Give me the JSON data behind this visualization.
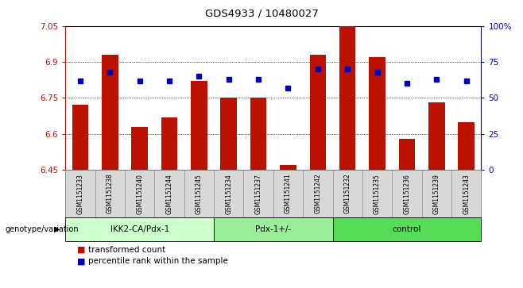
{
  "title": "GDS4933 / 10480027",
  "samples": [
    "GSM1151233",
    "GSM1151238",
    "GSM1151240",
    "GSM1151244",
    "GSM1151245",
    "GSM1151234",
    "GSM1151237",
    "GSM1151241",
    "GSM1151242",
    "GSM1151232",
    "GSM1151235",
    "GSM1151236",
    "GSM1151239",
    "GSM1151243"
  ],
  "bar_values": [
    6.72,
    6.93,
    6.63,
    6.67,
    6.82,
    6.75,
    6.75,
    6.47,
    6.93,
    7.05,
    6.92,
    6.58,
    6.73,
    6.65
  ],
  "percentile_values": [
    62,
    68,
    62,
    62,
    65,
    63,
    63,
    57,
    70,
    70,
    68,
    60,
    63,
    62
  ],
  "groups": [
    {
      "label": "IKK2-CA/Pdx-1",
      "start": 0,
      "end": 5,
      "color": "#ccffcc"
    },
    {
      "label": "Pdx-1+/-",
      "start": 5,
      "end": 9,
      "color": "#99ee99"
    },
    {
      "label": "control",
      "start": 9,
      "end": 14,
      "color": "#55dd55"
    }
  ],
  "ylim_left": [
    6.45,
    7.05
  ],
  "ylim_right": [
    0,
    100
  ],
  "yticks_left": [
    6.45,
    6.6,
    6.75,
    6.9,
    7.05
  ],
  "ytick_labels_left": [
    "6.45",
    "6.6",
    "6.75",
    "6.9",
    "7.05"
  ],
  "yticks_right": [
    0,
    25,
    50,
    75,
    100
  ],
  "ytick_labels_right": [
    "0",
    "25",
    "50",
    "75",
    "100%"
  ],
  "bar_color": "#bb1100",
  "dot_color": "#0000bb",
  "group_label_prefix": "genotype/variation",
  "legend_bar_label": "transformed count",
  "legend_dot_label": "percentile rank within the sample",
  "fig_width": 6.58,
  "fig_height": 3.63,
  "dpi": 100
}
